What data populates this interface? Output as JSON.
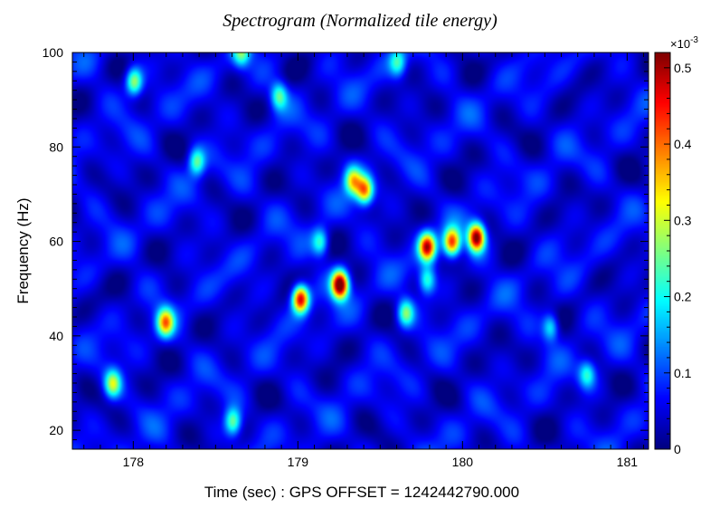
{
  "chart_data": {
    "type": "heatmap",
    "title": "Spectrogram (Normalized tile energy)",
    "xlabel": "Time (sec) : GPS OFFSET = 1242442790.000",
    "ylabel": "Frequency (Hz)",
    "xlim": [
      177.63,
      181.13
    ],
    "ylim": [
      16,
      100
    ],
    "xticks": [
      "178",
      "179",
      "180",
      "181"
    ],
    "xtick_values": [
      178,
      179,
      180,
      181
    ],
    "yticks": [
      "20",
      "40",
      "60",
      "80",
      "100"
    ],
    "ytick_values": [
      20,
      40,
      60,
      80,
      100
    ],
    "colorbar": {
      "range": [
        0,
        0.00052
      ],
      "exponent_label": "×10",
      "exponent": "-3",
      "ticks": [
        "0",
        "0.1",
        "0.2",
        "0.3",
        "0.4",
        "0.5"
      ],
      "tick_values": [
        0,
        0.1,
        0.2,
        0.3,
        0.4,
        0.5
      ],
      "colormap": "jet"
    },
    "hotspots": [
      {
        "time": 179.25,
        "freq": 51,
        "value": 0.00052
      },
      {
        "time": 180.08,
        "freq": 61,
        "value": 0.00048
      },
      {
        "time": 179.01,
        "freq": 48,
        "value": 0.00044
      },
      {
        "time": 179.78,
        "freq": 59,
        "value": 0.00042
      },
      {
        "time": 179.93,
        "freq": 60,
        "value": 0.00038
      },
      {
        "time": 179.4,
        "freq": 71,
        "value": 0.00033
      },
      {
        "time": 178.19,
        "freq": 43,
        "value": 0.00031
      },
      {
        "time": 179.33,
        "freq": 73,
        "value": 0.00026
      },
      {
        "time": 177.87,
        "freq": 30,
        "value": 0.00024
      },
      {
        "time": 178.0,
        "freq": 94,
        "value": 0.00024
      },
      {
        "time": 179.65,
        "freq": 45,
        "value": 0.00021
      },
      {
        "time": 178.6,
        "freq": 22,
        "value": 0.00021
      },
      {
        "time": 178.38,
        "freq": 77,
        "value": 0.0002
      },
      {
        "time": 179.78,
        "freq": 52,
        "value": 0.00019
      },
      {
        "time": 178.88,
        "freq": 91,
        "value": 0.00019
      },
      {
        "time": 179.13,
        "freq": 60,
        "value": 0.00018
      },
      {
        "time": 180.53,
        "freq": 42,
        "value": 0.00017
      },
      {
        "time": 180.75,
        "freq": 32,
        "value": 0.00016
      },
      {
        "time": 178.65,
        "freq": 100,
        "value": 0.00017
      },
      {
        "time": 179.6,
        "freq": 98,
        "value": 0.00016
      }
    ]
  }
}
